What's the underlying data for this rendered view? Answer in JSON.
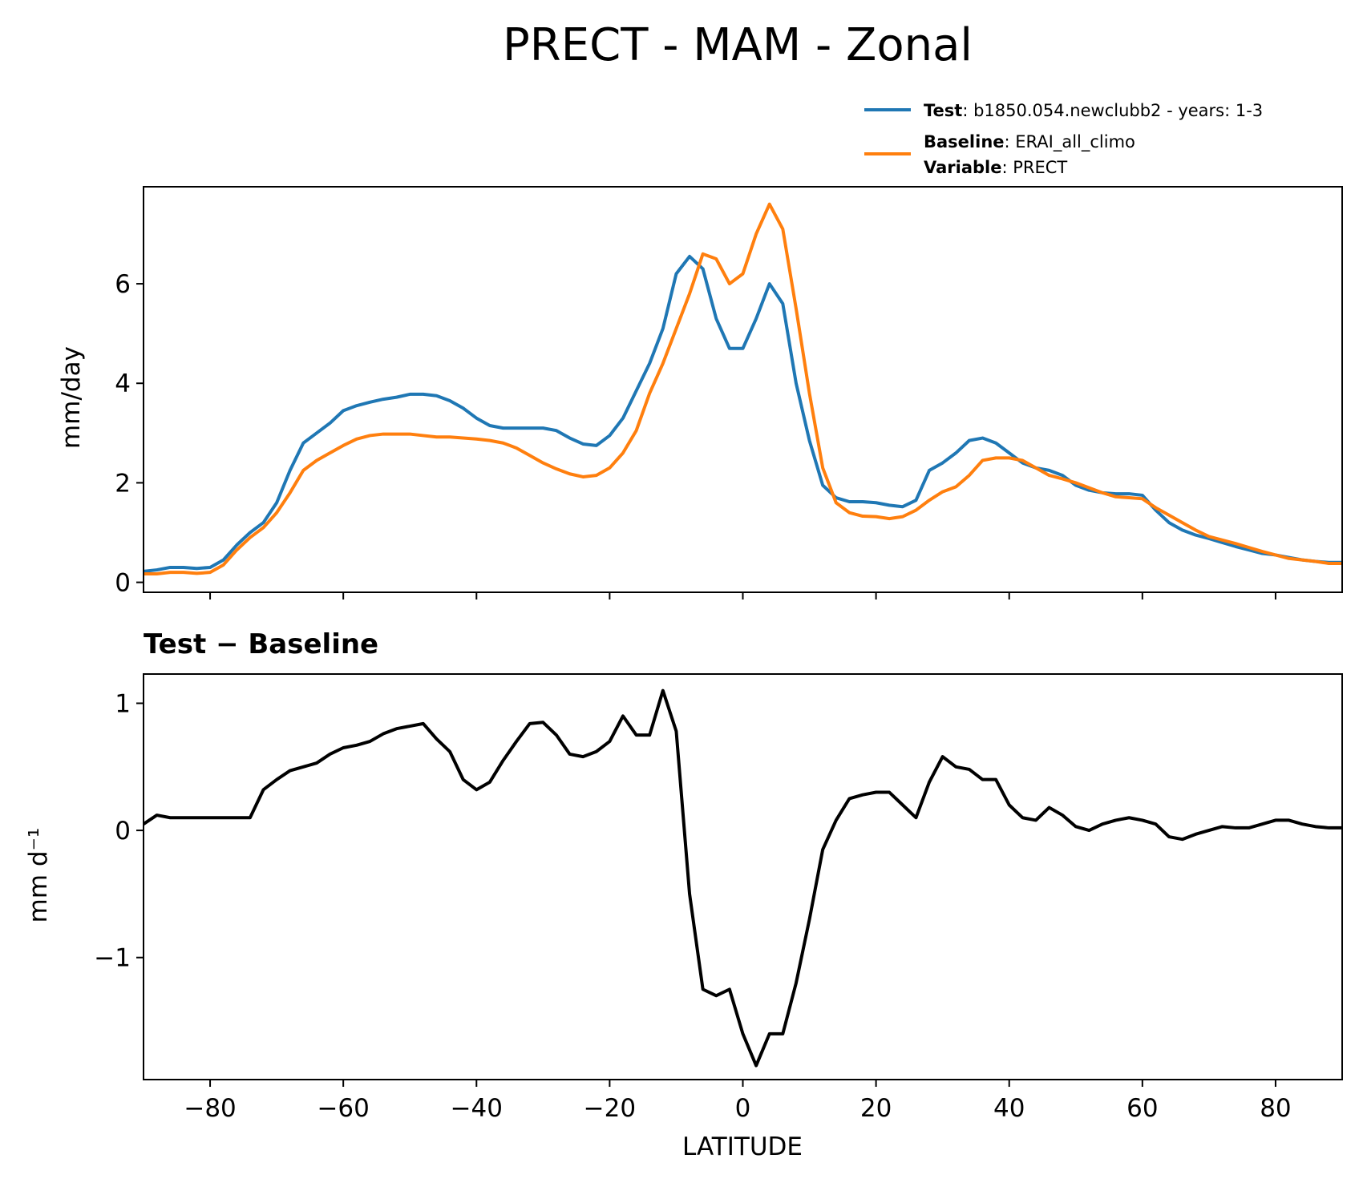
{
  "chart_data": [
    {
      "type": "line",
      "title": "PRECT - MAM - Zonal",
      "ylabel": "mm/day",
      "xlim": [
        -90,
        90
      ],
      "ylim": [
        -0.2,
        7.95
      ],
      "yticks": [
        0,
        2,
        4,
        6
      ],
      "xticks": [
        -80,
        -60,
        -40,
        -20,
        0,
        20,
        40,
        60,
        80
      ],
      "grid": false,
      "legend_position": "upper-right (above axes)",
      "legend": [
        {
          "label_bold": "Test",
          "label_text": ": b1850.054.newclubb2 - years: 1-3"
        },
        {
          "label_bold": "Baseline",
          "label_text": ": ERAI_all_climo"
        },
        {
          "label_bold": "Variable",
          "label_text": ": PRECT"
        }
      ],
      "colors": {
        "test": "#1f77b4",
        "baseline": "#ff7f0e"
      },
      "series": [
        {
          "name": "Test",
          "x": [
            -90,
            -88,
            -86,
            -84,
            -82,
            -80,
            -78,
            -76,
            -74,
            -72,
            -70,
            -68,
            -66,
            -64,
            -62,
            -60,
            -58,
            -56,
            -54,
            -52,
            -50,
            -48,
            -46,
            -44,
            -42,
            -40,
            -38,
            -36,
            -34,
            -32,
            -30,
            -28,
            -26,
            -24,
            -22,
            -20,
            -18,
            -16,
            -14,
            -12,
            -10,
            -8,
            -6,
            -4,
            -2,
            0,
            2,
            4,
            6,
            8,
            10,
            12,
            14,
            16,
            18,
            20,
            22,
            24,
            26,
            28,
            30,
            32,
            34,
            36,
            38,
            40,
            42,
            44,
            46,
            48,
            50,
            52,
            54,
            56,
            58,
            60,
            62,
            64,
            66,
            68,
            70,
            72,
            74,
            76,
            78,
            80,
            82,
            84,
            86,
            88,
            90
          ],
          "values": [
            0.22,
            0.25,
            0.3,
            0.3,
            0.28,
            0.3,
            0.45,
            0.75,
            1.0,
            1.2,
            1.6,
            2.25,
            2.8,
            3.0,
            3.2,
            3.45,
            3.55,
            3.62,
            3.68,
            3.72,
            3.78,
            3.78,
            3.75,
            3.65,
            3.5,
            3.3,
            3.15,
            3.1,
            3.1,
            3.1,
            3.1,
            3.05,
            2.9,
            2.78,
            2.75,
            2.95,
            3.3,
            3.85,
            4.4,
            5.1,
            6.2,
            6.55,
            6.3,
            5.3,
            4.7,
            4.7,
            5.3,
            6.0,
            5.6,
            4.0,
            2.85,
            1.95,
            1.7,
            1.62,
            1.62,
            1.6,
            1.55,
            1.52,
            1.65,
            2.25,
            2.4,
            2.6,
            2.85,
            2.9,
            2.8,
            2.6,
            2.4,
            2.3,
            2.25,
            2.15,
            1.95,
            1.85,
            1.8,
            1.78,
            1.78,
            1.75,
            1.45,
            1.2,
            1.05,
            0.95,
            0.88,
            0.8,
            0.72,
            0.65,
            0.58,
            0.55,
            0.5,
            0.45,
            0.42,
            0.4,
            0.4
          ]
        },
        {
          "name": "Baseline",
          "x": [
            -90,
            -88,
            -86,
            -84,
            -82,
            -80,
            -78,
            -76,
            -74,
            -72,
            -70,
            -68,
            -66,
            -64,
            -62,
            -60,
            -58,
            -56,
            -54,
            -52,
            -50,
            -48,
            -46,
            -44,
            -42,
            -40,
            -38,
            -36,
            -34,
            -32,
            -30,
            -28,
            -26,
            -24,
            -22,
            -20,
            -18,
            -16,
            -14,
            -12,
            -10,
            -8,
            -6,
            -4,
            -2,
            0,
            2,
            4,
            6,
            8,
            10,
            12,
            14,
            16,
            18,
            20,
            22,
            24,
            26,
            28,
            30,
            32,
            34,
            36,
            38,
            40,
            42,
            44,
            46,
            48,
            50,
            52,
            54,
            56,
            58,
            60,
            62,
            64,
            66,
            68,
            70,
            72,
            74,
            76,
            78,
            80,
            82,
            84,
            86,
            88,
            90
          ],
          "values": [
            0.17,
            0.17,
            0.2,
            0.2,
            0.18,
            0.2,
            0.35,
            0.65,
            0.9,
            1.1,
            1.4,
            1.8,
            2.25,
            2.45,
            2.6,
            2.75,
            2.88,
            2.95,
            2.98,
            2.98,
            2.98,
            2.95,
            2.92,
            2.92,
            2.9,
            2.88,
            2.85,
            2.8,
            2.7,
            2.55,
            2.4,
            2.28,
            2.18,
            2.12,
            2.15,
            2.3,
            2.6,
            3.05,
            3.8,
            4.4,
            5.1,
            5.8,
            6.6,
            6.5,
            6.0,
            6.2,
            7.0,
            7.6,
            7.1,
            5.5,
            3.8,
            2.3,
            1.6,
            1.4,
            1.33,
            1.32,
            1.28,
            1.32,
            1.45,
            1.65,
            1.82,
            1.92,
            2.15,
            2.45,
            2.5,
            2.5,
            2.45,
            2.3,
            2.15,
            2.08,
            2.0,
            1.9,
            1.8,
            1.72,
            1.7,
            1.68,
            1.5,
            1.35,
            1.2,
            1.05,
            0.92,
            0.85,
            0.78,
            0.7,
            0.62,
            0.55,
            0.48,
            0.45,
            0.42,
            0.38,
            0.38
          ]
        }
      ]
    },
    {
      "type": "line",
      "title": "Test − Baseline",
      "xlabel": "LATITUDE",
      "ylabel": "mm d⁻¹",
      "xlim": [
        -90,
        90
      ],
      "ylim": [
        -1.96,
        1.23
      ],
      "yticks": [
        -1,
        0,
        1
      ],
      "yticklabels": [
        "−1",
        "0",
        "1"
      ],
      "xticks": [
        -80,
        -60,
        -40,
        -20,
        0,
        20,
        40,
        60,
        80
      ],
      "xticklabels": [
        "−80",
        "−60",
        "−40",
        "−20",
        "0",
        "20",
        "40",
        "60",
        "80"
      ],
      "grid": false,
      "colors": {
        "diff": "#000000"
      },
      "series": [
        {
          "x": [
            -90,
            -88,
            -86,
            -84,
            -82,
            -80,
            -78,
            -76,
            -74,
            -72,
            -70,
            -68,
            -66,
            -64,
            -62,
            -60,
            -58,
            -56,
            -54,
            -52,
            -50,
            -48,
            -46,
            -44,
            -42,
            -40,
            -38,
            -36,
            -34,
            -32,
            -30,
            -28,
            -26,
            -24,
            -22,
            -20,
            -18,
            -16,
            -14,
            -12,
            -10,
            -8,
            -6,
            -4,
            -2,
            0,
            2,
            4,
            6,
            8,
            10,
            12,
            14,
            16,
            18,
            20,
            22,
            24,
            26,
            28,
            30,
            32,
            34,
            36,
            38,
            40,
            42,
            44,
            46,
            48,
            50,
            52,
            54,
            56,
            58,
            60,
            62,
            64,
            66,
            68,
            70,
            72,
            74,
            76,
            78,
            80,
            82,
            84,
            86,
            88,
            90
          ],
          "values": [
            0.05,
            0.12,
            0.1,
            0.1,
            0.1,
            0.1,
            0.1,
            0.1,
            0.1,
            0.32,
            0.4,
            0.47,
            0.5,
            0.53,
            0.6,
            0.65,
            0.67,
            0.7,
            0.76,
            0.8,
            0.82,
            0.84,
            0.72,
            0.62,
            0.4,
            0.32,
            0.38,
            0.55,
            0.7,
            0.84,
            0.85,
            0.75,
            0.6,
            0.58,
            0.62,
            0.7,
            0.9,
            0.75,
            0.75,
            1.1,
            0.78,
            -0.5,
            -1.25,
            -1.3,
            -1.25,
            -1.6,
            -1.85,
            -1.6,
            -1.6,
            -1.2,
            -0.7,
            -0.15,
            0.08,
            0.25,
            0.28,
            0.3,
            0.3,
            0.2,
            0.1,
            0.38,
            0.58,
            0.5,
            0.48,
            0.4,
            0.4,
            0.2,
            0.1,
            0.08,
            0.18,
            0.12,
            0.03,
            0.0,
            0.05,
            0.08,
            0.1,
            0.08,
            0.05,
            -0.05,
            -0.07,
            -0.03,
            0.0,
            0.03,
            0.02,
            0.02,
            0.05,
            0.08,
            0.08,
            0.05,
            0.03,
            0.02,
            0.02
          ]
        }
      ]
    }
  ]
}
